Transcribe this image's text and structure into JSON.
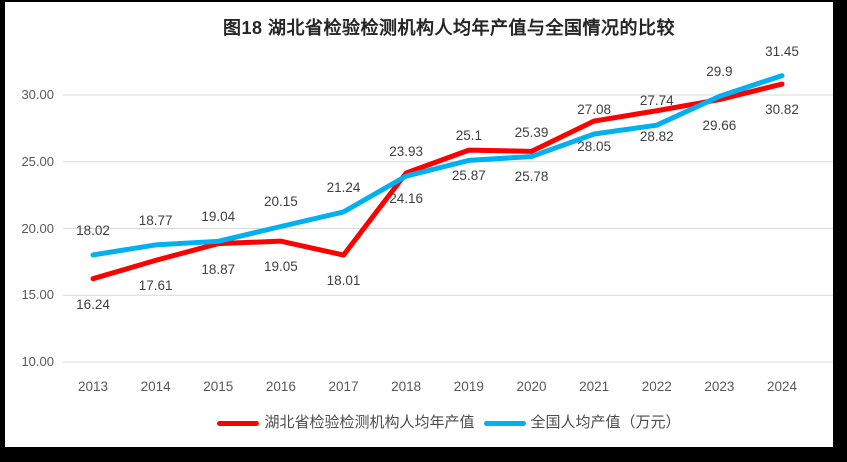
{
  "chart_data": {
    "type": "line",
    "title": "图18 湖北省检验检测机构人均年产值与全国情况的比较",
    "categories": [
      "2013",
      "2014",
      "2015",
      "2016",
      "2017",
      "2018",
      "2019",
      "2020",
      "2021",
      "2022",
      "2023",
      "2024"
    ],
    "series": [
      {
        "name": "湖北省检验检测机构人均年产值",
        "color": "#fe0000",
        "label_position": "below",
        "values": [
          16.24,
          17.61,
          18.87,
          19.05,
          18.01,
          24.16,
          25.87,
          25.78,
          28.05,
          28.82,
          29.66,
          30.82
        ]
      },
      {
        "name": "全国人均产值（万元）",
        "color": "#00b0f0",
        "label_position": "above",
        "values": [
          18.02,
          18.77,
          19.04,
          20.15,
          21.24,
          23.93,
          25.1,
          25.39,
          27.08,
          27.74,
          29.9,
          31.45
        ]
      }
    ],
    "ylim": [
      10,
      32.5
    ],
    "yticks": [
      {
        "value": 10,
        "label": "10.00"
      },
      {
        "value": 15,
        "label": "15.00"
      },
      {
        "value": 20,
        "label": "20.00"
      },
      {
        "value": 25,
        "label": "25.00"
      },
      {
        "value": 30,
        "label": "30.00"
      }
    ],
    "grid": true,
    "legend_position": "bottom",
    "colors": {
      "gridline": "#d9d9d9",
      "axis_text": "#595959",
      "data_label_text": "#3f3f3f",
      "title_text": "#262626",
      "canvas_background": "#ffffff",
      "frame_background": "#000000"
    }
  }
}
